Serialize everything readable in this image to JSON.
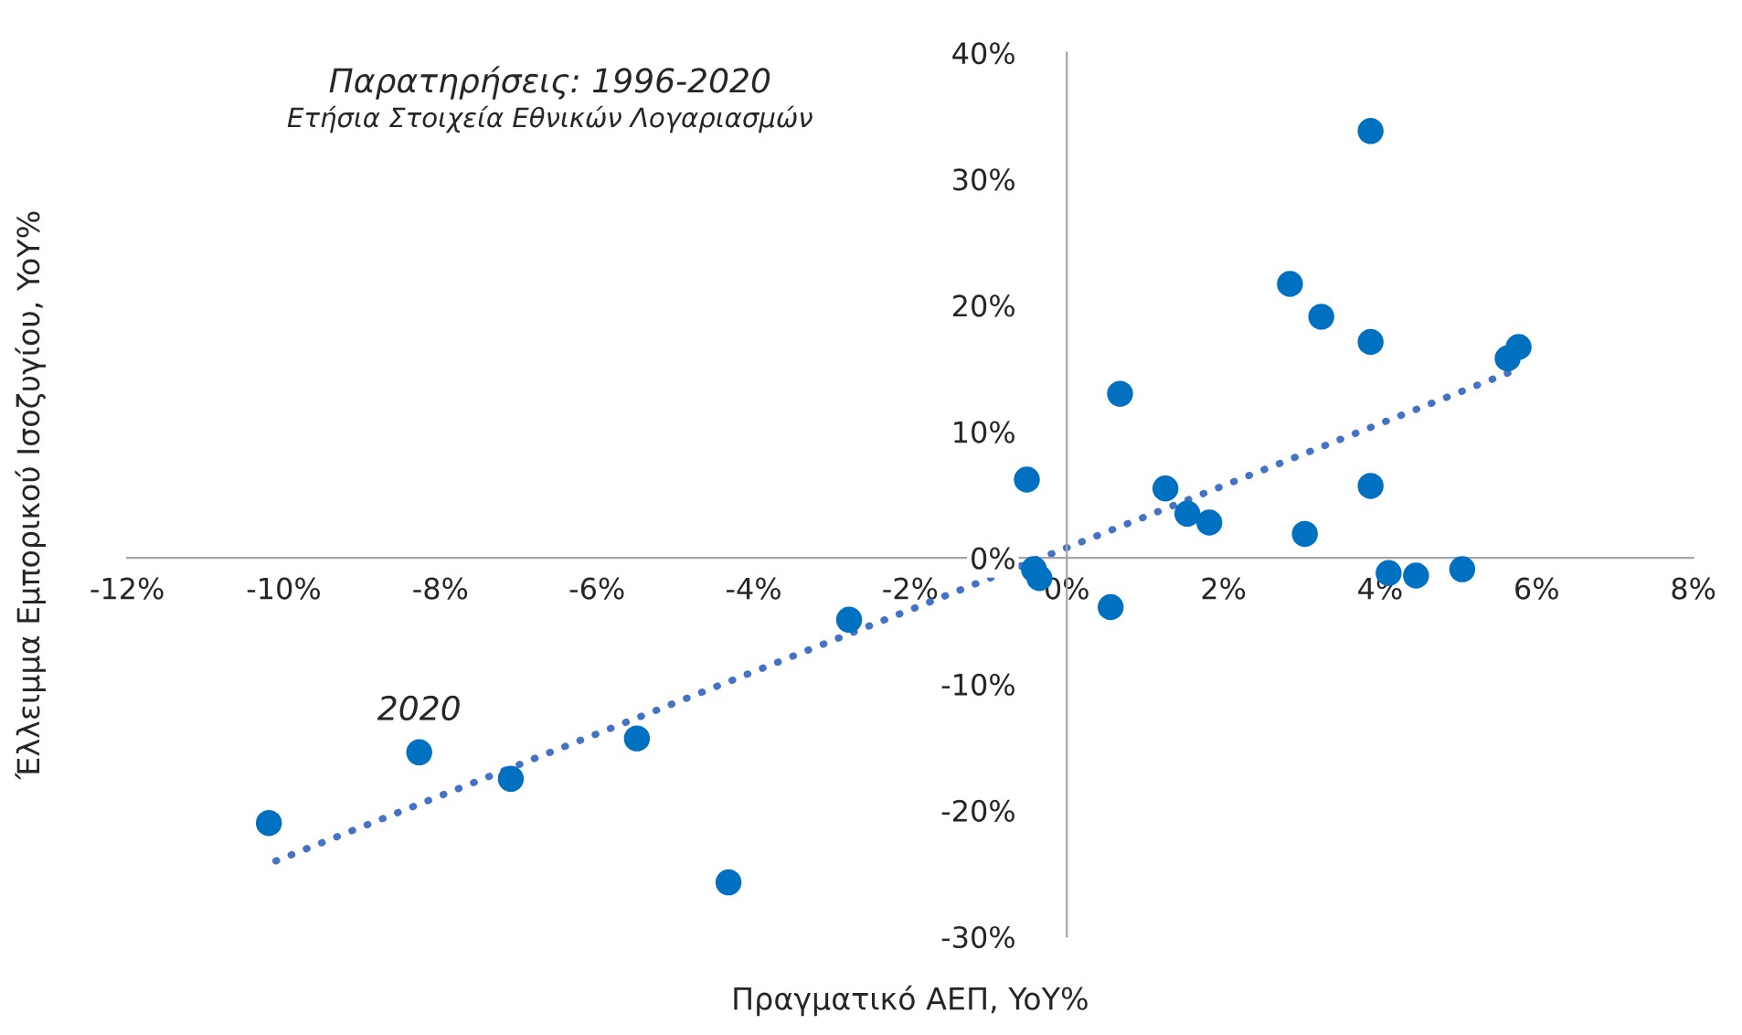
{
  "chart_data": {
    "type": "scatter",
    "title": "Παρατηρήσεις: 1996-2020",
    "subtitle": "Ετήσια Στοιχεία Εθνικών Λογαριασμών",
    "xlabel": "Πραγματικό ΑΕΠ, YoY%",
    "ylabel": "Έλλειμμα Εμπορικού Ισοζυγίου, YoY%",
    "annotations": [
      {
        "text": "2020",
        "x": -8.27,
        "y": -15.4
      }
    ],
    "series": [
      {
        "color": "#0070c0",
        "marker": "circle",
        "x": [
          -10.19,
          -8.27,
          -7.1,
          -5.49,
          -4.32,
          -2.78,
          -0.42,
          -0.35,
          -0.51,
          0.56,
          0.68,
          1.26,
          1.54,
          1.82,
          2.85,
          3.25,
          3.04,
          3.88,
          3.88,
          3.88,
          4.11,
          4.46,
          5.05,
          5.63,
          5.77
        ],
        "values": [
          -21.0,
          -15.4,
          -17.5,
          -14.3,
          -25.7,
          -4.9,
          -0.9,
          -1.6,
          6.2,
          -3.9,
          13.0,
          5.5,
          3.5,
          2.8,
          21.7,
          19.1,
          1.9,
          33.8,
          17.1,
          5.7,
          -1.2,
          -1.4,
          -0.9,
          15.8,
          16.7
        ]
      },
      {
        "type": "line",
        "color": "#4472c4",
        "line_style": "dotted",
        "x": [
          -10.1,
          5.7
        ],
        "values": [
          -24.0,
          14.8
        ]
      }
    ],
    "xlim": [
      -12,
      8
    ],
    "ylim": [
      -30,
      40
    ],
    "xticks": [
      {
        "value": -12,
        "label": "-12%"
      },
      {
        "value": -10,
        "label": "-10%"
      },
      {
        "value": -8,
        "label": "-8%"
      },
      {
        "value": -6,
        "label": "-6%"
      },
      {
        "value": -4,
        "label": "-4%"
      },
      {
        "value": -2,
        "label": "-2%"
      },
      {
        "value": 0,
        "label": "0%"
      },
      {
        "value": 2,
        "label": "2%"
      },
      {
        "value": 4,
        "label": "4%"
      },
      {
        "value": 6,
        "label": "6%"
      },
      {
        "value": 8,
        "label": "8%"
      }
    ],
    "yticks": [
      {
        "value": -30,
        "label": "-30%"
      },
      {
        "value": -20,
        "label": "-20%"
      },
      {
        "value": -10,
        "label": "-10%"
      },
      {
        "value": 0,
        "label": "0%"
      },
      {
        "value": 10,
        "label": "10%"
      },
      {
        "value": 20,
        "label": "20%"
      },
      {
        "value": 30,
        "label": "30%"
      },
      {
        "value": 40,
        "label": "40%"
      }
    ],
    "grid": false,
    "legend": false
  }
}
